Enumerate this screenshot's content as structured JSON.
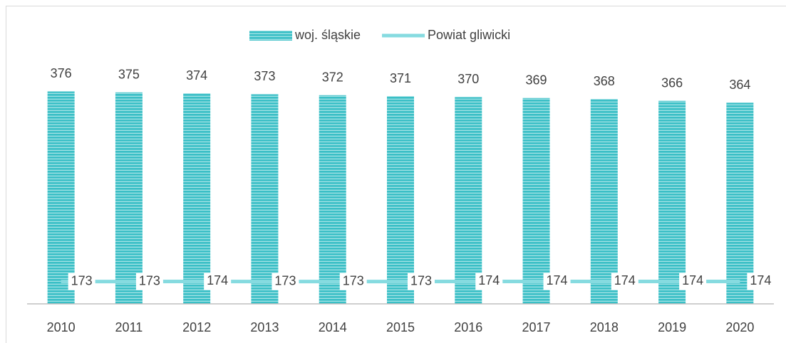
{
  "chart_data": {
    "type": "bar_line",
    "categories": [
      "2010",
      "2011",
      "2012",
      "2013",
      "2014",
      "2015",
      "2016",
      "2017",
      "2018",
      "2019",
      "2020"
    ],
    "series": [
      {
        "name": "woj. śląskie",
        "type": "bar",
        "color": "#3bbfc6",
        "values": [
          376,
          375,
          374,
          373,
          372,
          371,
          370,
          369,
          368,
          366,
          364
        ]
      },
      {
        "name": "Powiat gliwicki",
        "type": "line",
        "axis": "y2",
        "color": "#86dbe0",
        "values": [
          173,
          173,
          174,
          173,
          173,
          173,
          174,
          174,
          174,
          174,
          174
        ]
      }
    ],
    "ylim": [
      150,
      390
    ],
    "y2lim": [
      0,
      1750
    ],
    "grid": false,
    "legend": "top"
  }
}
